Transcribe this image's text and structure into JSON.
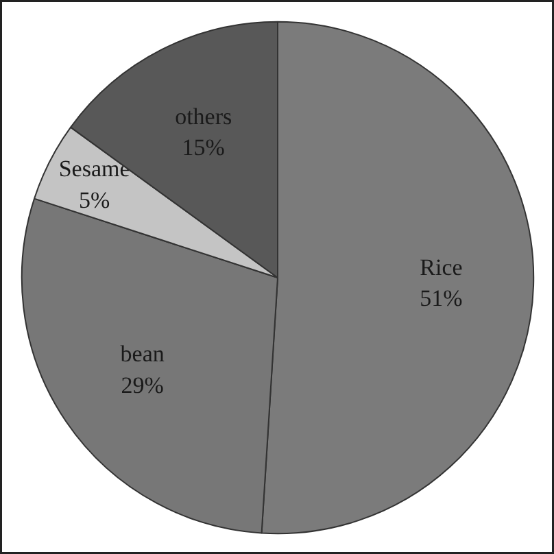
{
  "chart_data": {
    "type": "pie",
    "categories": [
      "Rice",
      "bean",
      "Sesame",
      "others"
    ],
    "values": [
      51,
      29,
      5,
      15
    ],
    "colors": [
      "#7b7b7b",
      "#777777",
      "#c4c4c4",
      "#585858"
    ],
    "value_labels": [
      "51%",
      "29%",
      "5%",
      "15%"
    ]
  }
}
